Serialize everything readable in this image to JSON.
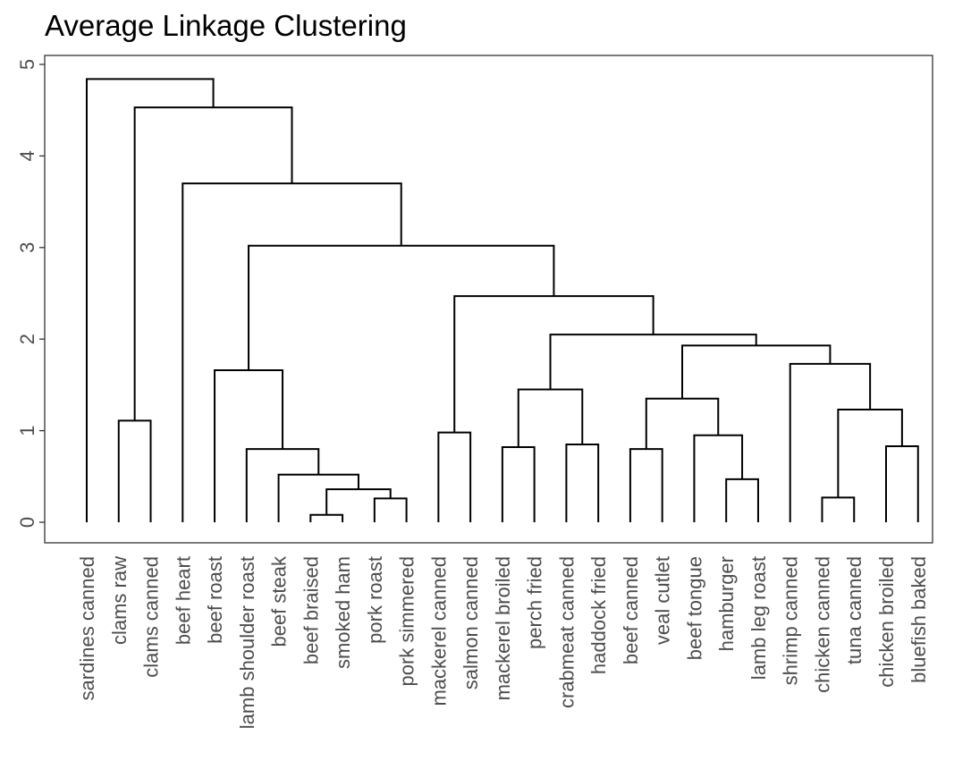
{
  "chart_data": {
    "type": "dendrogram",
    "title": "Average Linkage Clustering",
    "xlabel": "",
    "ylabel": "",
    "ylim": [
      0,
      5.05
    ],
    "yticks": [
      0,
      1,
      2,
      3,
      4,
      5
    ],
    "grid": false,
    "colors": {
      "line": "#000000",
      "text": "#4d4d4d",
      "frame": "#333333"
    },
    "leaves": [
      "sardines canned",
      "clams raw",
      "clams canned",
      "beef heart",
      "beef roast",
      "lamb shoulder roast",
      "beef steak",
      "beef braised",
      "smoked ham",
      "pork roast",
      "pork simmered",
      "mackerel canned",
      "salmon canned",
      "mackerel broiled",
      "perch fried",
      "crabmeat canned",
      "haddock fried",
      "beef canned",
      "veal cutlet",
      "beef tongue",
      "hamburger",
      "lamb leg roast",
      "shrimp canned",
      "chicken canned",
      "tuna canned",
      "chicken broiled",
      "bluefish baked"
    ],
    "merges": [
      {
        "left": "beef braised",
        "right": "smoked ham",
        "height": 0.08
      },
      {
        "left": "pork roast",
        "right": "pork simmered",
        "height": 0.26
      },
      {
        "left": "tuna canned",
        "right": "chicken broiled",
        "height": 0.27
      },
      {
        "left": "beef tongue",
        "right": "hamburger",
        "height": 0.47
      },
      {
        "left": "beef braised+smoked ham",
        "right": "pork roast+pork simmered",
        "height": 0.36
      },
      {
        "left": "beef steak",
        "right": "beef braised+smoked ham+pork roast+pork simmered",
        "height": 0.52
      },
      {
        "left": "mackerel broiled",
        "right": "perch fried",
        "height": 0.82
      },
      {
        "left": "bluefish baked",
        "right": "shrimp canned",
        "height": 0.83
      },
      {
        "left": "crabmeat canned",
        "right": "haddock fried",
        "height": 0.85
      },
      {
        "left": "lamb shoulder roast",
        "right": "beef steak+beef braised+smoked ham+pork roast+pork simmered",
        "height": 0.8
      },
      {
        "left": "mackerel canned",
        "right": "salmon canned",
        "height": 0.98
      },
      {
        "left": "beef canned",
        "right": "veal cutlet",
        "height": 0.8
      },
      {
        "left": "beef tongue+hamburger",
        "right": "lamb leg roast",
        "height": 0.95
      },
      {
        "left": "clams raw",
        "right": "clams canned",
        "height": 1.11
      },
      {
        "left": "tuna canned+chicken broiled",
        "right": "bluefish baked+shrimp canned",
        "height": 1.23
      },
      {
        "left": "beef canned+veal cutlet",
        "right": "beef tongue+hamburger+lamb leg roast",
        "height": 1.35
      },
      {
        "left": "mackerel broiled+perch fried",
        "right": "crabmeat canned+haddock fried",
        "height": 1.45
      },
      {
        "left": "beef roast",
        "right": "lamb shoulder roast cluster",
        "height": 1.66
      },
      {
        "left": "chicken canned",
        "right": "tuna canned+chicken broiled+bluefish baked+shrimp canned",
        "height": 1.73
      },
      {
        "left": "beef canned cluster",
        "right": "chicken canned cluster",
        "height": 1.93
      },
      {
        "left": "mackerel broiled cluster",
        "right": "beef canned+chicken canned cluster",
        "height": 2.05
      },
      {
        "left": "mackerel canned+salmon canned",
        "right": "mackerel broiled+beef canned+chicken canned cluster",
        "height": 2.47
      },
      {
        "left": "beef roast cluster",
        "right": "mackerel canned cluster",
        "height": 3.02
      },
      {
        "left": "beef heart",
        "right": "beef roast+mackerel canned cluster",
        "height": 3.7
      },
      {
        "left": "clams raw+clams canned",
        "right": "beef heart cluster",
        "height": 4.53
      },
      {
        "left": "sardines canned",
        "right": "clams raw cluster",
        "height": 4.84
      }
    ]
  }
}
